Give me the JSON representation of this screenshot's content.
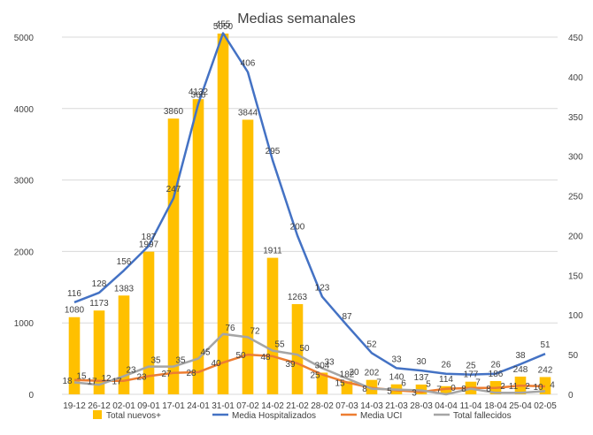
{
  "chart_data": {
    "type": "bar",
    "title": "Medias semanales",
    "categories": [
      "19-12",
      "26-12",
      "02-01",
      "09-01",
      "17-01",
      "24-01",
      "31-01",
      "07-02",
      "14-02",
      "21-02",
      "28-02",
      "07-03",
      "14-03",
      "21-03",
      "28-03",
      "04-04",
      "11-04",
      "18-04",
      "25-04",
      "02-05"
    ],
    "y_left": {
      "min": 0,
      "max": 5000,
      "ticks": [
        0,
        1000,
        2000,
        3000,
        4000,
        5000
      ]
    },
    "y_right": {
      "min": 0,
      "max": 450,
      "ticks": [
        0,
        50,
        100,
        150,
        200,
        250,
        300,
        350,
        400,
        450
      ]
    },
    "grid": true,
    "legend_position": "bottom",
    "series": [
      {
        "name": "Total nuevos+",
        "kind": "bar",
        "axis": "left",
        "color": "#FFC000",
        "values": [
          1080,
          1173,
          1383,
          1997,
          3860,
          4132,
          5050,
          3844,
          1911,
          1263,
          304,
          182,
          202,
          140,
          137,
          114,
          177,
          186,
          248,
          242
        ]
      },
      {
        "name": "Media Hospitalizados",
        "kind": "line",
        "axis": "right",
        "color": "#4472C4",
        "values": [
          116,
          128,
          156,
          187,
          247,
          366,
          455,
          406,
          295,
          200,
          123,
          87,
          52,
          33,
          30,
          26,
          25,
          26,
          38,
          51
        ]
      },
      {
        "name": "Media UCI",
        "kind": "line",
        "axis": "right",
        "color": "#ED7D31",
        "values": [
          18,
          17,
          17,
          23,
          27,
          28,
          40,
          50,
          48,
          39,
          25,
          15,
          8,
          5,
          3,
          7,
          8,
          8,
          11,
          10
        ]
      },
      {
        "name": "Total fallecidos",
        "kind": "line",
        "axis": "right",
        "color": "#A5A5A5",
        "values": [
          15,
          12,
          23,
          35,
          35,
          45,
          76,
          72,
          55,
          50,
          33,
          20,
          7,
          6,
          5,
          0,
          7,
          2,
          2,
          4
        ]
      }
    ]
  }
}
